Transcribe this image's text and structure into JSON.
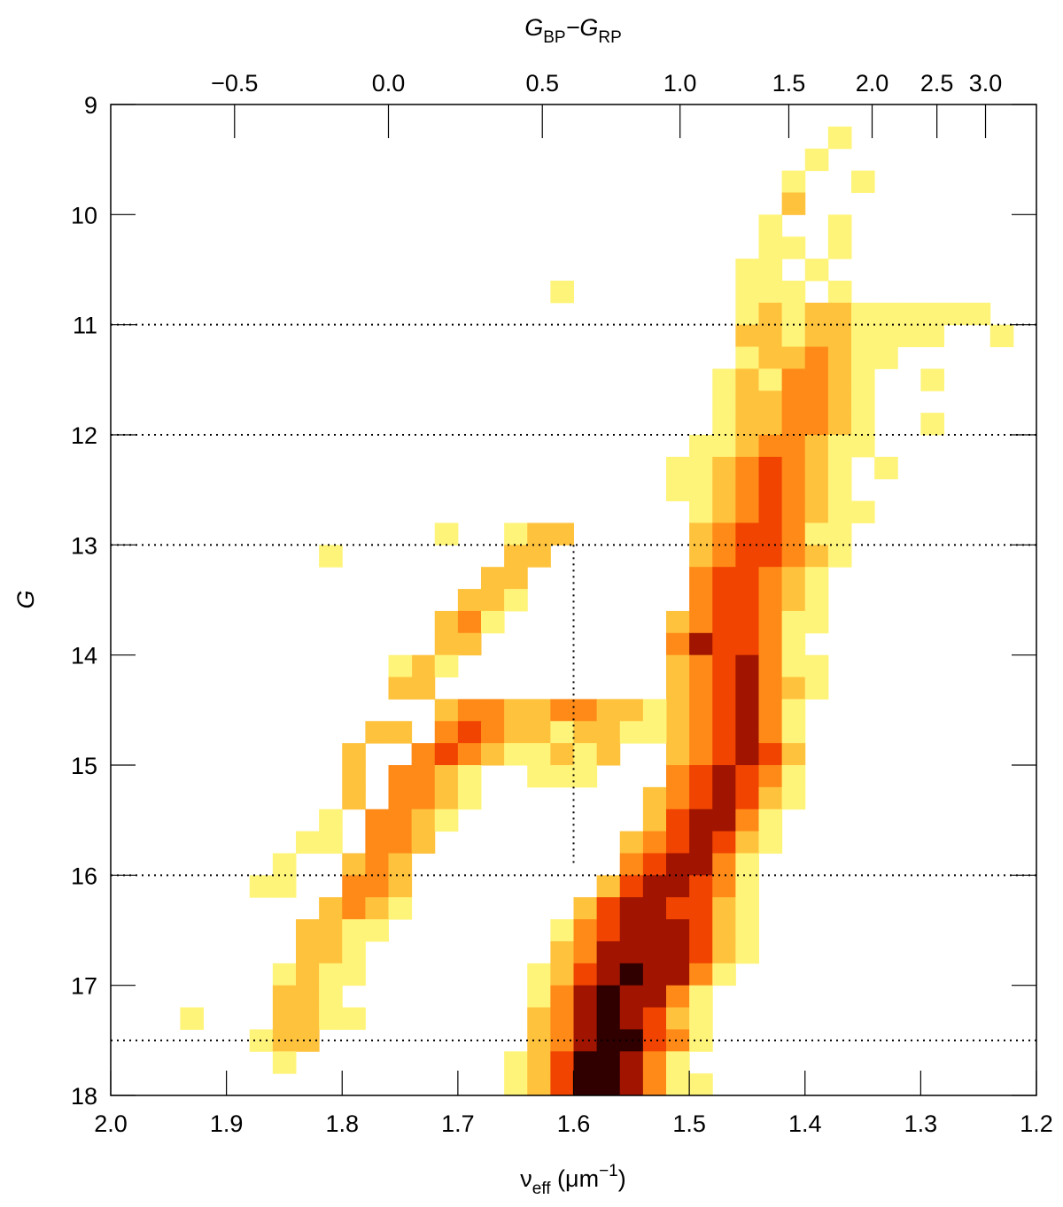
{
  "chart_data": {
    "type": "heatmap",
    "xlabel": [
      "ν",
      "eff",
      " (μm",
      "−1",
      ")"
    ],
    "ylabel": "G",
    "x2label": [
      "G",
      "BP",
      "−G",
      "RP"
    ],
    "xlim": [
      2.0,
      1.2
    ],
    "ylim": [
      18,
      9
    ],
    "xticks": [
      {
        "value": 2.0,
        "label": "2.0"
      },
      1.9,
      1.8,
      1.7,
      1.6,
      1.5,
      1.4,
      1.3,
      1.2
    ],
    "yticks": [
      9,
      10,
      11,
      12,
      13,
      14,
      15,
      16,
      17,
      18
    ],
    "x2ticks": [
      {
        "value": 1.893,
        "label": "−0.5"
      },
      {
        "value": 1.76,
        "label": "0.0"
      },
      {
        "value": 1.627,
        "label": "0.5"
      },
      {
        "value": 1.508,
        "label": "1.0"
      },
      {
        "value": 1.414,
        "label": "1.5"
      },
      {
        "value": 1.342,
        "label": "2.0"
      },
      {
        "value": 1.286,
        "label": "2.5"
      },
      {
        "value": 1.244,
        "label": "3.0"
      }
    ],
    "hlines": [
      11,
      12,
      13,
      16,
      17.5
    ],
    "vline": {
      "x": 1.6,
      "y": [
        13,
        15.9
      ]
    },
    "colors": [
      "#fff47a",
      "#ffc23c",
      "#ff8a18",
      "#f04400",
      "#a01400",
      "#300000"
    ],
    "dx": 0.02,
    "dy": 0.2,
    "cells": [
      {
        "y": 9.2,
        "x": 1.38,
        "levels": [
          1
        ]
      },
      {
        "y": 9.4,
        "x": 1.4,
        "levels": [
          1
        ]
      },
      {
        "y": 9.6,
        "x": 1.42,
        "levels": [
          1,
          0,
          0,
          1
        ]
      },
      {
        "y": 9.8,
        "x": 1.42,
        "levels": [
          2
        ]
      },
      {
        "y": 10.0,
        "x": 1.44,
        "levels": [
          1,
          0,
          0,
          1
        ]
      },
      {
        "y": 10.2,
        "x": 1.44,
        "levels": [
          1,
          1,
          0,
          1
        ]
      },
      {
        "y": 10.4,
        "x": 1.46,
        "levels": [
          1,
          1,
          0,
          1
        ]
      },
      {
        "y": 10.6,
        "x": 1.46,
        "levels": [
          1,
          1,
          1,
          0,
          1
        ]
      },
      {
        "y": 10.6,
        "x": 1.62,
        "levels": [
          1
        ]
      },
      {
        "y": 10.8,
        "x": 1.46,
        "levels": [
          1,
          2,
          1,
          2,
          2,
          1,
          1,
          1,
          1,
          1,
          1
        ]
      },
      {
        "y": 11.0,
        "x": 1.46,
        "levels": [
          2,
          2,
          1,
          2,
          2,
          1,
          1,
          1,
          1,
          0,
          0,
          1
        ]
      },
      {
        "y": 11.2,
        "x": 1.46,
        "levels": [
          1,
          2,
          2,
          3,
          2,
          1,
          1
        ]
      },
      {
        "y": 11.4,
        "x": 1.48,
        "levels": [
          1,
          2,
          1,
          3,
          3,
          2,
          1,
          0,
          0,
          1
        ]
      },
      {
        "y": 11.6,
        "x": 1.48,
        "levels": [
          1,
          2,
          2,
          3,
          3,
          2,
          1
        ]
      },
      {
        "y": 11.8,
        "x": 1.48,
        "levels": [
          1,
          2,
          2,
          3,
          3,
          2,
          1,
          0,
          0,
          1
        ]
      },
      {
        "y": 12.0,
        "x": 1.5,
        "levels": [
          1,
          1,
          2,
          3,
          3,
          2,
          1,
          1
        ]
      },
      {
        "y": 12.2,
        "x": 1.52,
        "levels": [
          1,
          1,
          2,
          3,
          4,
          3,
          2,
          1,
          0,
          1
        ]
      },
      {
        "y": 12.4,
        "x": 1.52,
        "levels": [
          1,
          1,
          2,
          3,
          4,
          3,
          2,
          1
        ]
      },
      {
        "y": 12.6,
        "x": 1.5,
        "levels": [
          1,
          2,
          3,
          4,
          3,
          2,
          1,
          1
        ]
      },
      {
        "y": 12.8,
        "x": 1.5,
        "levels": [
          2,
          3,
          4,
          4,
          3,
          1,
          1
        ]
      },
      {
        "y": 12.8,
        "x": 1.66,
        "levels": [
          1,
          2,
          2
        ]
      },
      {
        "y": 12.8,
        "x": 1.72,
        "levels": [
          1
        ]
      },
      {
        "y": 13.0,
        "x": 1.5,
        "levels": [
          2,
          3,
          4,
          4,
          3,
          2,
          1
        ]
      },
      {
        "y": 13.0,
        "x": 1.66,
        "levels": [
          2,
          2
        ]
      },
      {
        "y": 13.0,
        "x": 1.82,
        "levels": [
          1
        ]
      },
      {
        "y": 13.2,
        "x": 1.5,
        "levels": [
          3,
          4,
          4,
          3,
          2,
          1
        ]
      },
      {
        "y": 13.2,
        "x": 1.68,
        "levels": [
          2,
          2
        ]
      },
      {
        "y": 13.4,
        "x": 1.5,
        "levels": [
          3,
          4,
          4,
          3,
          2,
          1
        ]
      },
      {
        "y": 13.4,
        "x": 1.7,
        "levels": [
          2,
          2,
          1
        ]
      },
      {
        "y": 13.6,
        "x": 1.52,
        "levels": [
          2,
          3,
          4,
          4,
          3,
          1,
          1
        ]
      },
      {
        "y": 13.6,
        "x": 1.72,
        "levels": [
          2,
          3,
          1
        ]
      },
      {
        "y": 13.8,
        "x": 1.52,
        "levels": [
          3,
          5,
          4,
          4,
          3,
          1
        ]
      },
      {
        "y": 13.8,
        "x": 1.72,
        "levels": [
          2,
          2
        ]
      },
      {
        "y": 14.0,
        "x": 1.52,
        "levels": [
          2,
          3,
          4,
          5,
          3,
          1,
          1
        ]
      },
      {
        "y": 14.0,
        "x": 1.74,
        "levels": [
          2,
          1
        ]
      },
      {
        "y": 14.0,
        "x": 1.76,
        "levels": [
          1
        ]
      },
      {
        "y": 14.2,
        "x": 1.52,
        "levels": [
          2,
          3,
          4,
          5,
          3,
          2,
          1
        ]
      },
      {
        "y": 14.2,
        "x": 1.76,
        "levels": [
          2,
          2
        ]
      },
      {
        "y": 14.4,
        "x": 1.52,
        "levels": [
          2,
          3,
          4,
          5,
          3,
          1
        ]
      },
      {
        "y": 14.4,
        "x": 1.72,
        "levels": [
          2,
          3,
          3,
          2,
          2,
          3,
          3,
          2,
          2,
          1
        ]
      },
      {
        "y": 14.6,
        "x": 1.52,
        "levels": [
          2,
          3,
          4,
          5,
          3,
          1
        ]
      },
      {
        "y": 14.6,
        "x": 1.72,
        "levels": [
          3,
          4,
          3,
          2,
          2,
          1,
          2,
          2,
          1,
          1
        ]
      },
      {
        "y": 14.6,
        "x": 1.78,
        "levels": [
          2,
          2
        ]
      },
      {
        "y": 14.8,
        "x": 1.52,
        "levels": [
          2,
          3,
          4,
          5,
          4,
          2
        ]
      },
      {
        "y": 14.8,
        "x": 1.74,
        "levels": [
          3,
          4,
          3,
          2,
          1,
          1,
          2,
          1,
          2
        ]
      },
      {
        "y": 14.8,
        "x": 1.8,
        "levels": [
          2
        ]
      },
      {
        "y": 15.0,
        "x": 1.52,
        "levels": [
          3,
          4,
          5,
          4,
          3,
          1
        ]
      },
      {
        "y": 15.0,
        "x": 1.76,
        "levels": [
          3,
          3,
          2,
          1,
          0,
          0,
          1,
          1,
          1
        ]
      },
      {
        "y": 15.0,
        "x": 1.8,
        "levels": [
          2
        ]
      },
      {
        "y": 15.2,
        "x": 1.54,
        "levels": [
          2,
          3,
          4,
          5,
          4,
          2,
          1
        ]
      },
      {
        "y": 15.2,
        "x": 1.76,
        "levels": [
          3,
          3,
          2,
          1
        ]
      },
      {
        "y": 15.2,
        "x": 1.8,
        "levels": [
          2
        ]
      },
      {
        "y": 15.4,
        "x": 1.54,
        "levels": [
          2,
          4,
          5,
          5,
          3,
          1
        ]
      },
      {
        "y": 15.4,
        "x": 1.78,
        "levels": [
          3,
          3,
          2,
          1
        ]
      },
      {
        "y": 15.4,
        "x": 1.82,
        "levels": [
          1
        ]
      },
      {
        "y": 15.6,
        "x": 1.56,
        "levels": [
          2,
          3,
          4,
          5,
          4,
          2,
          1
        ]
      },
      {
        "y": 15.6,
        "x": 1.78,
        "levels": [
          3,
          3,
          2
        ]
      },
      {
        "y": 15.6,
        "x": 1.84,
        "levels": [
          1,
          1
        ]
      },
      {
        "y": 15.8,
        "x": 1.56,
        "levels": [
          3,
          4,
          5,
          5,
          3,
          1
        ]
      },
      {
        "y": 15.8,
        "x": 1.8,
        "levels": [
          2,
          3,
          2
        ]
      },
      {
        "y": 15.8,
        "x": 1.86,
        "levels": [
          1
        ]
      },
      {
        "y": 16.0,
        "x": 1.58,
        "levels": [
          2,
          4,
          5,
          5,
          4,
          3,
          1
        ]
      },
      {
        "y": 16.0,
        "x": 1.8,
        "levels": [
          3,
          3,
          2
        ]
      },
      {
        "y": 16.0,
        "x": 1.88,
        "levels": [
          1,
          1
        ]
      },
      {
        "y": 16.2,
        "x": 1.6,
        "levels": [
          2,
          4,
          5,
          5,
          4,
          4,
          2,
          1
        ]
      },
      {
        "y": 16.2,
        "x": 1.82,
        "levels": [
          2,
          3,
          2,
          1
        ]
      },
      {
        "y": 16.4,
        "x": 1.62,
        "levels": [
          1,
          3,
          4,
          5,
          5,
          5,
          4,
          2,
          1
        ]
      },
      {
        "y": 16.4,
        "x": 1.84,
        "levels": [
          2,
          2,
          1,
          1
        ]
      },
      {
        "y": 16.6,
        "x": 1.62,
        "levels": [
          2,
          3,
          5,
          5,
          5,
          5,
          4,
          2,
          1
        ]
      },
      {
        "y": 16.6,
        "x": 1.84,
        "levels": [
          2,
          2,
          1
        ]
      },
      {
        "y": 16.8,
        "x": 1.64,
        "levels": [
          1,
          2,
          4,
          5,
          6,
          5,
          5,
          3,
          1
        ]
      },
      {
        "y": 16.8,
        "x": 1.86,
        "levels": [
          1,
          2,
          1,
          1
        ]
      },
      {
        "y": 17.0,
        "x": 1.64,
        "levels": [
          1,
          3,
          5,
          6,
          5,
          5,
          3,
          1
        ]
      },
      {
        "y": 17.0,
        "x": 1.86,
        "levels": [
          2,
          2,
          1
        ]
      },
      {
        "y": 17.2,
        "x": 1.64,
        "levels": [
          2,
          3,
          5,
          6,
          5,
          4,
          2,
          1
        ]
      },
      {
        "y": 17.2,
        "x": 1.86,
        "levels": [
          2,
          2,
          1,
          1
        ]
      },
      {
        "y": 17.2,
        "x": 1.94,
        "levels": [
          1
        ]
      },
      {
        "y": 17.4,
        "x": 1.64,
        "levels": [
          2,
          3,
          5,
          6,
          6,
          4,
          3,
          1
        ]
      },
      {
        "y": 17.4,
        "x": 1.88,
        "levels": [
          1,
          2,
          2
        ]
      },
      {
        "y": 17.6,
        "x": 1.66,
        "levels": [
          1,
          2,
          4,
          6,
          6,
          5,
          3,
          1
        ]
      },
      {
        "y": 17.6,
        "x": 1.86,
        "levels": [
          1
        ]
      },
      {
        "y": 17.8,
        "x": 1.66,
        "levels": [
          1,
          2,
          4,
          6,
          6,
          5,
          3,
          1,
          1
        ]
      }
    ]
  }
}
